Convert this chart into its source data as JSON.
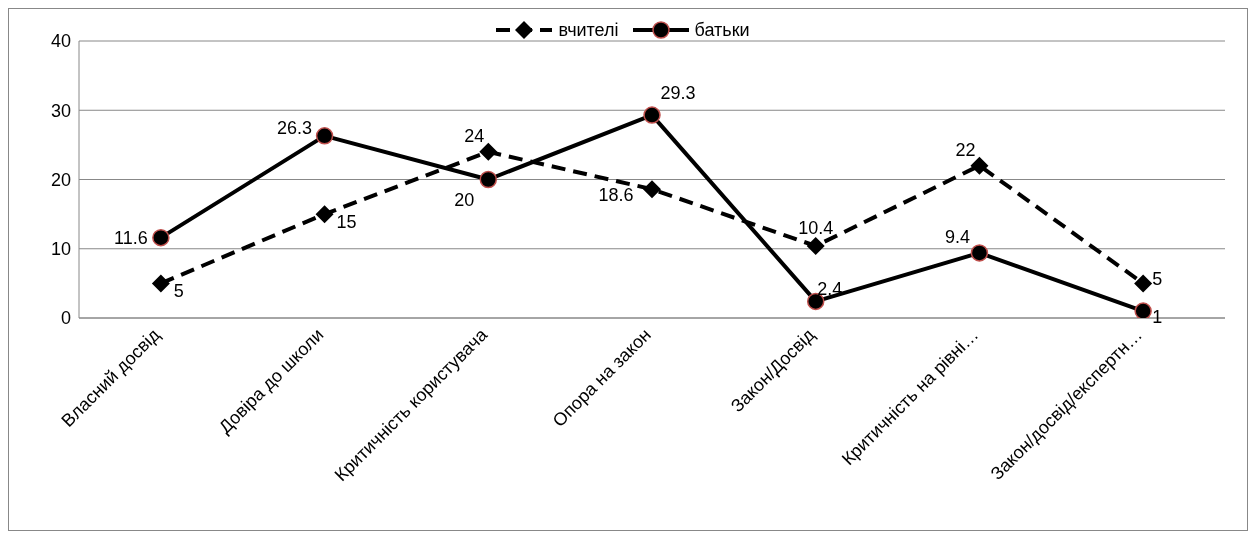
{
  "chart_data": {
    "type": "line",
    "categories": [
      "Власний досвід",
      "Довіра до школи",
      "Критичність користувача",
      "Опора на закон",
      "Закон/Досвід",
      "Критичність на рівні…",
      "Закон/досвід/експертн…"
    ],
    "series": [
      {
        "name": "вчителі",
        "color": "#000000",
        "marker": "diamond",
        "line_style": "dashed",
        "values": [
          5,
          15,
          24,
          18.6,
          10.4,
          22,
          5
        ]
      },
      {
        "name": "батьки",
        "color": "#000000",
        "marker": "circle",
        "line_style": "solid",
        "values": [
          11.6,
          26.3,
          20,
          29.3,
          2.4,
          9.4,
          1
        ]
      }
    ],
    "ylim": [
      0,
      40
    ],
    "yticks": [
      0,
      10,
      20,
      30,
      40
    ],
    "grid": "y",
    "legend": "top",
    "data_labels": true
  }
}
